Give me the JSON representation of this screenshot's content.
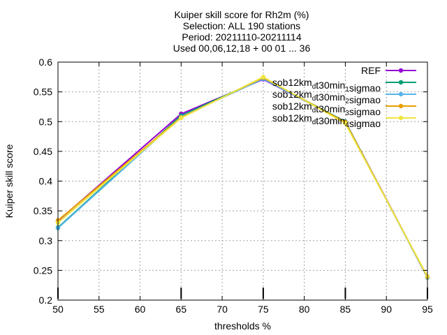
{
  "title_lines": [
    "Kuiper skill score  for Rh2m (%)",
    "Selection: ALL    190 stations",
    "Period: 20211110-20211114",
    "Used 00,06,12,18 + 00 01 ... 36"
  ],
  "chart_data": {
    "type": "line",
    "xlabel": "thresholds %",
    "ylabel": "Kuiper skill score",
    "xlim": [
      50,
      95
    ],
    "ylim": [
      0.2,
      0.6
    ],
    "xticks": [
      50,
      55,
      60,
      65,
      70,
      75,
      80,
      85,
      90,
      95
    ],
    "xtick_labels": [
      "50",
      "55",
      "60",
      "65",
      "70",
      "75",
      "80",
      "85",
      "90",
      "95"
    ],
    "yticks": [
      0.2,
      0.25,
      0.3,
      0.35,
      0.4,
      0.45,
      0.5,
      0.55,
      0.6
    ],
    "ytick_labels": [
      "0.2",
      "0.25",
      "0.3",
      "0.35",
      "0.4",
      "0.45",
      "0.5",
      "0.55",
      "0.6"
    ],
    "grid": true,
    "legend_position": "top-right",
    "x": [
      50,
      65,
      75,
      85,
      95
    ],
    "series": [
      {
        "name": "REF",
        "name_parts": [
          {
            "t": "REF"
          }
        ],
        "color": "#9400d3",
        "values": [
          0.333,
          0.513,
          0.571,
          0.5,
          0.239
        ]
      },
      {
        "name": "sob12km_dt30min_1sigmao",
        "name_parts": [
          {
            "t": "sob12km"
          },
          {
            "t": "d",
            "sub": true
          },
          {
            "t": "t30min"
          },
          {
            "t": "1",
            "sub": true
          },
          {
            "t": "sigmao"
          }
        ],
        "color": "#009e73",
        "values": [
          0.322,
          0.51,
          0.573,
          0.5,
          0.238
        ]
      },
      {
        "name": "sob12km_dt30min_2sigmao",
        "name_parts": [
          {
            "t": "sob12km"
          },
          {
            "t": "d",
            "sub": true
          },
          {
            "t": "t30min"
          },
          {
            "t": "2",
            "sub": true
          },
          {
            "t": "sigmao"
          }
        ],
        "color": "#56b4e9",
        "values": [
          0.321,
          0.508,
          0.572,
          0.499,
          0.238
        ]
      },
      {
        "name": "sob12km_dt30min_3sigmao",
        "name_parts": [
          {
            "t": "sob12km"
          },
          {
            "t": "d",
            "sub": true
          },
          {
            "t": "t30min"
          },
          {
            "t": "3",
            "sub": true
          },
          {
            "t": "sigmao"
          }
        ],
        "color": "#e69f00",
        "values": [
          0.334,
          0.507,
          0.574,
          0.499,
          0.239
        ]
      },
      {
        "name": "sob12km_dt30min_4sigmao",
        "name_parts": [
          {
            "t": "sob12km"
          },
          {
            "t": "d",
            "sub": true
          },
          {
            "t": "t30min"
          },
          {
            "t": "4",
            "sub": true
          },
          {
            "t": "sigmao"
          }
        ],
        "color": "#f0e442",
        "values": [
          0.33,
          0.506,
          0.575,
          0.497,
          0.24
        ]
      }
    ]
  }
}
